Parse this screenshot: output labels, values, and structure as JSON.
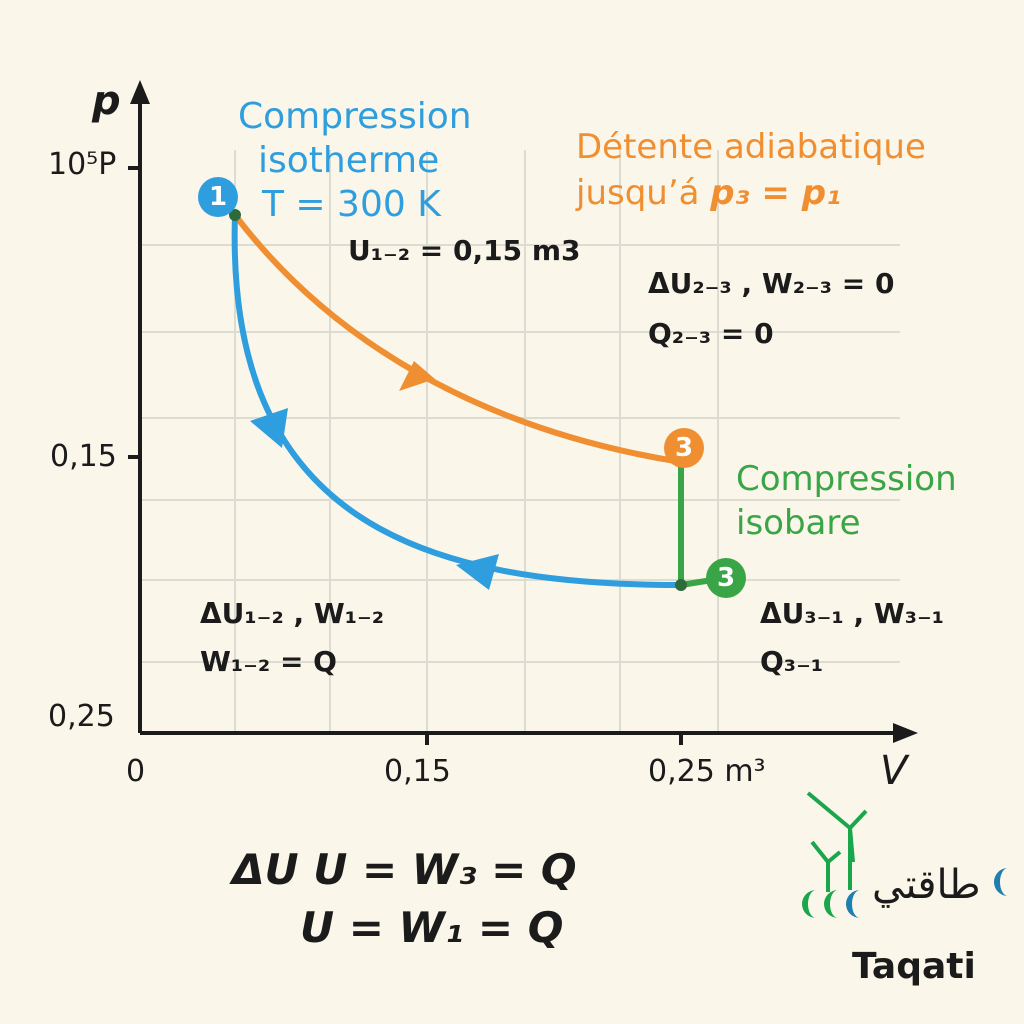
{
  "axes": {
    "y_label": "p",
    "x_label": "V",
    "y_ticks": [
      "10⁵P",
      "0,15",
      "0,25"
    ],
    "x_ticks": [
      "0",
      "0,15",
      "0,25 m³"
    ]
  },
  "points": {
    "p1": "1",
    "p3_top": "3",
    "p3_bottom": "3"
  },
  "labels": {
    "isotherm_line1": "Compression",
    "isotherm_line2": "isotherme",
    "isotherm_line3": "T = 300 K",
    "adiabatic_line1": "Détente adiabatique",
    "adiabatic_line2_prefix": "jusqu’á ",
    "adiabatic_line2_formula": "p₃ = p₁",
    "isobar_line1": "Compression",
    "isobar_line2": "isobare",
    "u12": "U₁₋₂ = 0,15 m3",
    "du23_w23": "ΔU₂₋₃ , W₂₋₃ = 0",
    "q23": "Q₂₋₃ = 0",
    "du12_w12": "ΔU₁₋₂ , W₁₋₂",
    "w12_q": "W₁₋₂ = Q",
    "du31_w31": "ΔU₃₋₁ , W₃₋₁",
    "q31": "Q₃₋₁"
  },
  "equations": {
    "line1": "ΔU U = W₃ = Q",
    "line2": "U = W₁ = Q"
  },
  "logo": {
    "arabic": "طاقتي",
    "name": "Taqati"
  },
  "colors": {
    "isotherm": "#2f9ede",
    "adiabatic": "#ef8f32",
    "isobar": "#3aa547",
    "grid": "#dcdcd2",
    "axis": "#1b1b1b",
    "background": "#fbf6ea"
  }
}
